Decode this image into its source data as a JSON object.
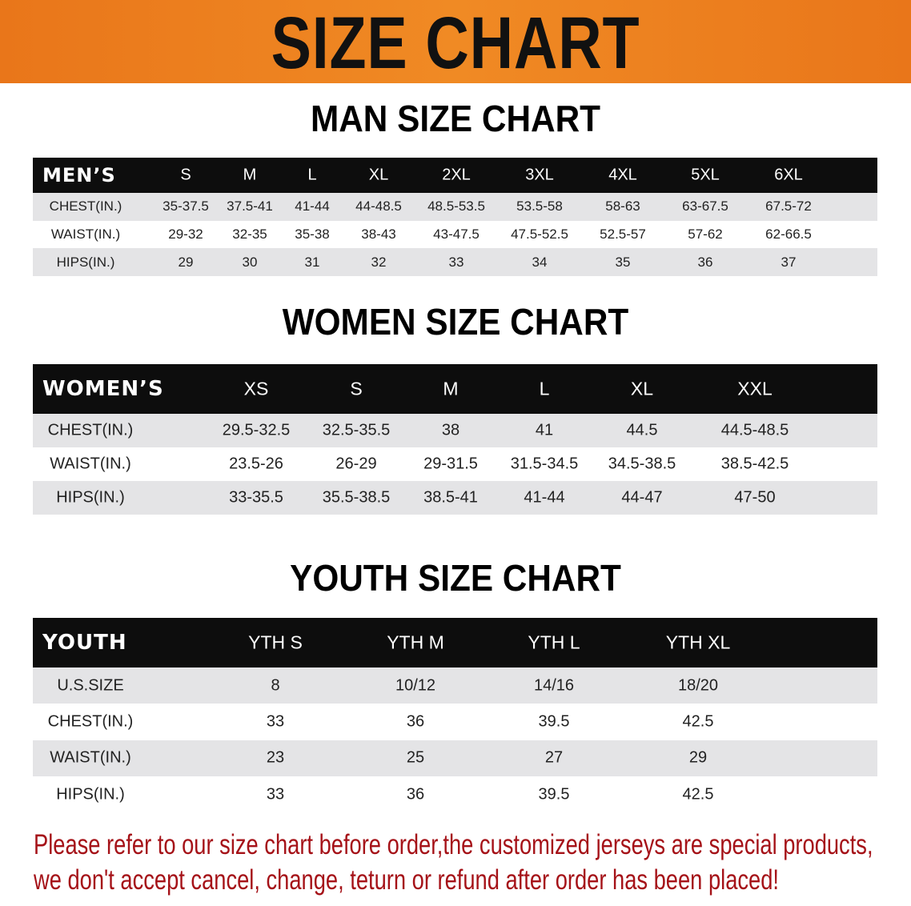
{
  "banner": {
    "title": "SIZE CHART",
    "color": "#ec7f1f"
  },
  "men": {
    "title": "MAN SIZE CHART",
    "header_label": "MEN’S",
    "sizes": [
      "S",
      "M",
      "L",
      "XL",
      "2XL",
      "3XL",
      "4XL",
      "5XL",
      "6XL"
    ],
    "rows": [
      {
        "label": "CHEST(IN.)",
        "values": [
          "35-37.5",
          "37.5-41",
          "41-44",
          "44-48.5",
          "48.5-53.5",
          "53.5-58",
          "58-63",
          "63-67.5",
          "67.5-72"
        ]
      },
      {
        "label": "WAIST(IN.)",
        "values": [
          "29-32",
          "32-35",
          "35-38",
          "38-43",
          "43-47.5",
          "47.5-52.5",
          "52.5-57",
          "57-62",
          "62-66.5"
        ]
      },
      {
        "label": "HIPS(IN.)",
        "values": [
          "29",
          "30",
          "31",
          "32",
          "33",
          "34",
          "35",
          "36",
          "37"
        ]
      }
    ]
  },
  "women": {
    "title": "WOMEN SIZE CHART",
    "header_label": "WOMEN’S",
    "sizes": [
      "XS",
      "S",
      "M",
      "L",
      "XL",
      "XXL"
    ],
    "rows": [
      {
        "label": "CHEST(IN.)",
        "values": [
          "29.5-32.5",
          "32.5-35.5",
          "38",
          "41",
          "44.5",
          "44.5-48.5"
        ]
      },
      {
        "label": "WAIST(IN.)",
        "values": [
          "23.5-26",
          "26-29",
          "29-31.5",
          "31.5-34.5",
          "34.5-38.5",
          "38.5-42.5"
        ]
      },
      {
        "label": "HIPS(IN.)",
        "values": [
          "33-35.5",
          "35.5-38.5",
          "38.5-41",
          "41-44",
          "44-47",
          "47-50"
        ]
      }
    ]
  },
  "youth": {
    "title": "YOUTH SIZE CHART",
    "header_label": "YOUTH",
    "sizes": [
      "YTH S",
      "YTH M",
      "YTH L",
      "YTH XL"
    ],
    "rows": [
      {
        "label": "U.S.SIZE",
        "values": [
          "8",
          "10/12",
          "14/16",
          "18/20"
        ]
      },
      {
        "label": "CHEST(IN.)",
        "values": [
          "33",
          "36",
          "39.5",
          "42.5"
        ]
      },
      {
        "label": "WAIST(IN.)",
        "values": [
          "23",
          "25",
          "27",
          "29"
        ]
      },
      {
        "label": "HIPS(IN.)",
        "values": [
          "33",
          "36",
          "39.5",
          "42.5"
        ]
      }
    ]
  },
  "notice": {
    "line1": "Please refer to our size chart before order,the customized jerseys are special products,",
    "line2": "we don't accept cancel, change, teturn or refund after order has been placed!",
    "color": "#a51218"
  }
}
